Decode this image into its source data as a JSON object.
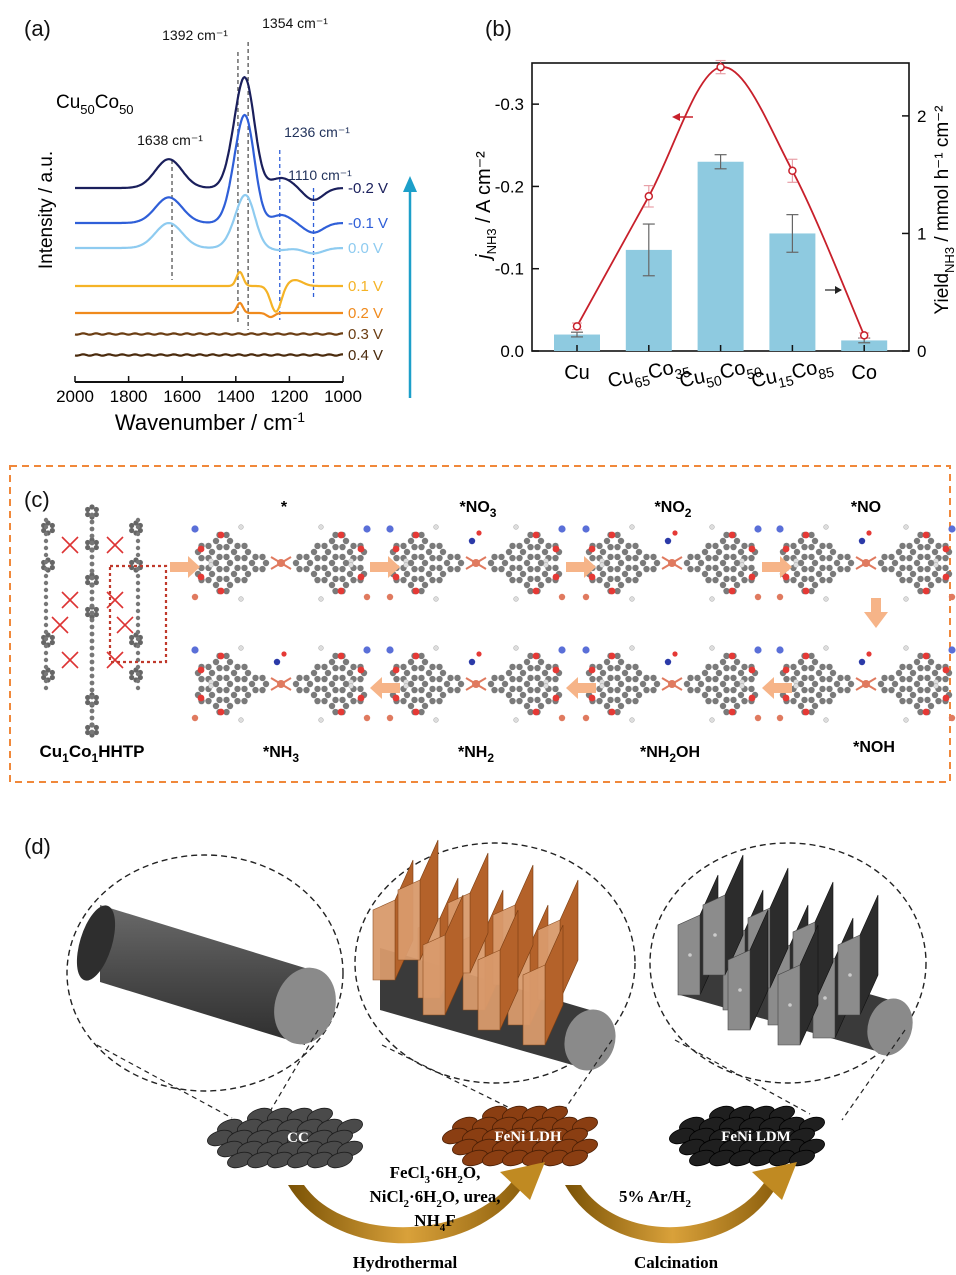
{
  "panels": {
    "a": {
      "letter": "(a)",
      "sample": "Cu",
      "sample_sub1": "50",
      "sample_mid": "Co",
      "sample_sub2": "50"
    },
    "b": {
      "letter": "(b)"
    },
    "c": {
      "letter": "(c)",
      "framework_label": "Cu",
      "framework_sub1": "1",
      "framework_mid": "Co",
      "framework_sub2": "1",
      "framework_tail": "HHTP",
      "intermediates_top": [
        "*",
        "*NO",
        "*NO",
        "*NO"
      ],
      "intermediates_top_subs": [
        "",
        "3",
        "2",
        ""
      ],
      "intermediates_bottom": [
        "*NH",
        "*NH",
        "*NH",
        "*NOH"
      ],
      "intermediates_bottom_subs": [
        "3",
        "2",
        "2",
        ""
      ],
      "intermediates_bottom_tails": [
        "",
        "",
        "OH",
        ""
      ]
    },
    "d": {
      "letter": "(d)",
      "cc_label": "CC",
      "ldh_label": "FeNi LDH",
      "ldm_label": "FeNi LDM",
      "reagents_line1": "FeCl",
      "reagents_line1_sub": "3",
      "reagents_line1_rest": "·6H",
      "reagents_line1_sub2": "2",
      "reagents_line1_end": "O,",
      "reagents_line2": "NiCl",
      "reagents_line2_sub": "2",
      "reagents_line2_rest": "·6H",
      "reagents_line2_sub2": "2",
      "reagents_line2_end": "O, urea,",
      "reagents_line3": "NH",
      "reagents_line3_sub": "4",
      "reagents_line3_end": "F",
      "gas": "5% Ar/H",
      "gas_sub": "2",
      "step1": "Hydrothermal",
      "step2": "Calcination"
    }
  },
  "chart_data": [
    {
      "type": "line",
      "panel": "a",
      "xlabel": "Wavenumber / cm⁻¹",
      "ylabel": "Intensity / a.u.",
      "xlim": [
        2000,
        1000
      ],
      "x_ticks": [
        2000,
        1800,
        1600,
        1400,
        1200,
        1000
      ],
      "series": [
        {
          "name": "-0.2 V",
          "color": "#1a1f5c"
        },
        {
          "name": "-0.1 V",
          "color": "#2f5fd8"
        },
        {
          "name": "0.0 V",
          "color": "#8ecbf0"
        },
        {
          "name": "0.1 V",
          "color": "#f5b326"
        },
        {
          "name": "0.2 V",
          "color": "#f08a1c"
        },
        {
          "name": "0.3 V",
          "color": "#6b3d12"
        },
        {
          "name": "0.4 V",
          "color": "#4a2a0c"
        }
      ],
      "annotations": [
        {
          "label": "1638 cm⁻¹",
          "x": 1638
        },
        {
          "label": "1392 cm⁻¹",
          "x": 1392
        },
        {
          "label": "1354 cm⁻¹",
          "x": 1354
        },
        {
          "label": "1236 cm⁻¹",
          "x": 1236
        },
        {
          "label": "1110 cm⁻¹",
          "x": 1110
        }
      ]
    },
    {
      "type": "bar",
      "panel": "b",
      "categories": [
        "Cu",
        "Cu",
        "Cu",
        "Cu",
        "Co"
      ],
      "category_labels": [
        {
          "a": "Cu",
          "as": "",
          "b": "",
          "bs": ""
        },
        {
          "a": "Cu",
          "as": "65",
          "b": "Co",
          "bs": "35"
        },
        {
          "a": "Cu",
          "as": "50",
          "b": "Co",
          "bs": "50"
        },
        {
          "a": "Cu",
          "as": "15",
          "b": "Co",
          "bs": "85"
        },
        {
          "a": "Co",
          "as": "",
          "b": "",
          "bs": ""
        }
      ],
      "ylabel_left_main": "j",
      "ylabel_left_sub": "NH3",
      "ylabel_left_rest": " / A cm⁻²",
      "ylabel_right_main": "Yield",
      "ylabel_right_sub": "NH3",
      "ylabel_right_rest": " / mmol h⁻¹ cm⁻²",
      "ylim_left": [
        0,
        -0.35
      ],
      "left_ticks": [
        0.0,
        -0.1,
        -0.2,
        -0.3
      ],
      "left_tick_labels": [
        "0.0",
        "-0.1",
        "-0.2",
        "-0.3"
      ],
      "ylim_right": [
        0,
        2.45
      ],
      "right_ticks": [
        0,
        1,
        2
      ],
      "series": [
        {
          "axis": "right",
          "kind": "bar",
          "color": "#8ecae0",
          "values": [
            0.14,
            0.86,
            1.61,
            1.0,
            0.09
          ],
          "errors": [
            0.02,
            0.22,
            0.06,
            0.16,
            0.02
          ]
        },
        {
          "axis": "left",
          "kind": "line",
          "color": "#c8202b",
          "values": [
            -0.03,
            -0.188,
            -0.345,
            -0.219,
            -0.019
          ],
          "errors": [
            0.004,
            0.013,
            0.008,
            0.014,
            0.003
          ]
        }
      ]
    }
  ]
}
